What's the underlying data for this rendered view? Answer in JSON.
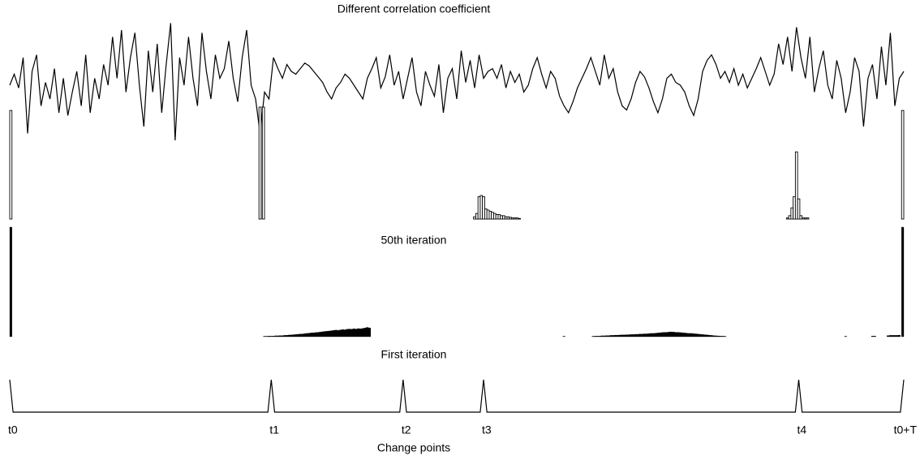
{
  "chart_data": [
    {
      "type": "line",
      "title": "Different correlation coefficient",
      "color": "#000000",
      "xlim": [
        0,
        400
      ],
      "ylim": [
        0,
        1
      ],
      "x": [
        0,
        2,
        4,
        6,
        8,
        10,
        12,
        14,
        16,
        18,
        20,
        22,
        24,
        26,
        28,
        30,
        32,
        34,
        36,
        38,
        40,
        42,
        44,
        46,
        48,
        50,
        52,
        54,
        56,
        58,
        60,
        62,
        64,
        66,
        68,
        70,
        72,
        74,
        76,
        78,
        80,
        82,
        84,
        86,
        88,
        90,
        92,
        94,
        96,
        98,
        100,
        102,
        104,
        106,
        108,
        110,
        112,
        114,
        116,
        118,
        120,
        122,
        124,
        126,
        128,
        130,
        132,
        134,
        136,
        138,
        140,
        142,
        144,
        146,
        148,
        150,
        152,
        154,
        156,
        158,
        160,
        162,
        164,
        166,
        168,
        170,
        172,
        174,
        176,
        178,
        180,
        182,
        184,
        186,
        188,
        190,
        192,
        194,
        196,
        198,
        200,
        202,
        204,
        206,
        208,
        210,
        212,
        214,
        216,
        218,
        220,
        222,
        224,
        226,
        228,
        230,
        232,
        234,
        236,
        238,
        240,
        242,
        244,
        246,
        248,
        250,
        252,
        254,
        256,
        258,
        260,
        262,
        264,
        266,
        268,
        270,
        272,
        274,
        276,
        278,
        280,
        282,
        284,
        286,
        288,
        290,
        292,
        294,
        296,
        298,
        300,
        302,
        304,
        306,
        308,
        310,
        312,
        314,
        316,
        318,
        320,
        322,
        324,
        326,
        328,
        330,
        332,
        334,
        336,
        338,
        340,
        342,
        344,
        346,
        348,
        350,
        352,
        354,
        356,
        358,
        360,
        362,
        364,
        366,
        368,
        370,
        372,
        374,
        376,
        378,
        380,
        382,
        384,
        386,
        388,
        390,
        392,
        394,
        396,
        398,
        400
      ],
      "values": [
        0.5,
        0.58,
        0.48,
        0.7,
        0.15,
        0.6,
        0.72,
        0.35,
        0.52,
        0.4,
        0.62,
        0.3,
        0.55,
        0.28,
        0.45,
        0.6,
        0.35,
        0.72,
        0.3,
        0.55,
        0.4,
        0.65,
        0.5,
        0.85,
        0.55,
        0.9,
        0.45,
        0.7,
        0.88,
        0.5,
        0.2,
        0.75,
        0.45,
        0.8,
        0.3,
        0.65,
        0.95,
        0.1,
        0.7,
        0.5,
        0.85,
        0.55,
        0.35,
        0.88,
        0.6,
        0.4,
        0.72,
        0.55,
        0.62,
        0.82,
        0.55,
        0.38,
        0.7,
        0.9,
        0.5,
        0.4,
        0.15,
        0.45,
        0.4,
        0.7,
        0.62,
        0.55,
        0.65,
        0.6,
        0.58,
        0.62,
        0.66,
        0.64,
        0.6,
        0.56,
        0.52,
        0.45,
        0.4,
        0.48,
        0.52,
        0.58,
        0.55,
        0.5,
        0.45,
        0.4,
        0.55,
        0.62,
        0.7,
        0.48,
        0.56,
        0.72,
        0.5,
        0.6,
        0.4,
        0.55,
        0.7,
        0.45,
        0.35,
        0.6,
        0.5,
        0.42,
        0.65,
        0.3,
        0.55,
        0.62,
        0.4,
        0.75,
        0.52,
        0.68,
        0.48,
        0.72,
        0.55,
        0.6,
        0.62,
        0.55,
        0.65,
        0.48,
        0.6,
        0.52,
        0.58,
        0.45,
        0.5,
        0.62,
        0.7,
        0.58,
        0.48,
        0.6,
        0.55,
        0.42,
        0.35,
        0.3,
        0.38,
        0.48,
        0.55,
        0.62,
        0.7,
        0.6,
        0.5,
        0.72,
        0.55,
        0.62,
        0.45,
        0.35,
        0.32,
        0.4,
        0.52,
        0.6,
        0.56,
        0.48,
        0.38,
        0.3,
        0.4,
        0.55,
        0.58,
        0.52,
        0.5,
        0.45,
        0.35,
        0.28,
        0.4,
        0.6,
        0.68,
        0.72,
        0.65,
        0.55,
        0.6,
        0.52,
        0.62,
        0.5,
        0.58,
        0.48,
        0.55,
        0.62,
        0.7,
        0.6,
        0.5,
        0.58,
        0.8,
        0.65,
        0.85,
        0.6,
        0.92,
        0.7,
        0.55,
        0.85,
        0.45,
        0.62,
        0.75,
        0.5,
        0.4,
        0.68,
        0.55,
        0.3,
        0.45,
        0.7,
        0.6,
        0.2,
        0.55,
        0.65,
        0.4,
        0.78,
        0.5,
        0.88,
        0.35,
        0.55,
        0.6
      ]
    },
    {
      "type": "bar",
      "color": "#000000",
      "filled": false,
      "xlim": [
        0,
        400
      ],
      "ylim": [
        0,
        1
      ],
      "x": [
        0.5,
        112,
        113.5,
        208,
        209,
        210,
        211,
        212,
        213,
        214,
        215,
        216,
        217,
        218,
        219,
        220,
        221,
        222,
        223,
        224,
        225,
        226,
        227,
        228,
        348,
        349,
        350,
        351,
        352,
        353,
        354,
        355,
        356,
        357,
        399.5
      ],
      "values": [
        0.97,
        1,
        1,
        0.02,
        0.05,
        0.2,
        0.21,
        0.2,
        0.09,
        0.08,
        0.07,
        0.06,
        0.05,
        0.04,
        0.04,
        0.03,
        0.03,
        0.02,
        0.02,
        0.015,
        0.01,
        0.01,
        0.01,
        0.005,
        0.01,
        0.03,
        0.1,
        0.2,
        0.6,
        0.18,
        0.03,
        0.01,
        0.01,
        0.01,
        0.97
      ]
    },
    {
      "type": "bar",
      "title": "50th iteration",
      "color": "#000000",
      "filled": true,
      "xlim": [
        0,
        400
      ],
      "ylim": [
        0,
        1
      ],
      "x": [
        0.5,
        114,
        115,
        116,
        117,
        118,
        119,
        120,
        121,
        122,
        123,
        124,
        125,
        126,
        127,
        128,
        129,
        130,
        131,
        132,
        133,
        134,
        135,
        136,
        137,
        138,
        139,
        140,
        141,
        142,
        143,
        144,
        145,
        146,
        147,
        148,
        149,
        150,
        151,
        152,
        153,
        154,
        155,
        156,
        157,
        158,
        159,
        160,
        161,
        248,
        261,
        262,
        263,
        264,
        265,
        266,
        267,
        268,
        269,
        270,
        271,
        272,
        273,
        274,
        275,
        276,
        277,
        278,
        279,
        280,
        281,
        282,
        283,
        284,
        285,
        286,
        287,
        288,
        289,
        290,
        291,
        292,
        293,
        294,
        295,
        296,
        297,
        298,
        299,
        300,
        301,
        302,
        303,
        304,
        305,
        306,
        307,
        308,
        309,
        310,
        311,
        312,
        313,
        314,
        315,
        316,
        317,
        318,
        319,
        320,
        374,
        386,
        387,
        393,
        394,
        395,
        396,
        397,
        398,
        399.5
      ],
      "values": [
        1,
        0.004,
        0.004,
        0.006,
        0.005,
        0.006,
        0.008,
        0.008,
        0.01,
        0.01,
        0.012,
        0.013,
        0.015,
        0.016,
        0.018,
        0.02,
        0.022,
        0.024,
        0.025,
        0.027,
        0.03,
        0.032,
        0.035,
        0.036,
        0.038,
        0.04,
        0.042,
        0.045,
        0.048,
        0.05,
        0.052,
        0.055,
        0.058,
        0.06,
        0.058,
        0.062,
        0.065,
        0.063,
        0.068,
        0.07,
        0.068,
        0.072,
        0.07,
        0.074,
        0.072,
        0.075,
        0.08,
        0.085,
        0.08,
        0.004,
        0.004,
        0.005,
        0.006,
        0.006,
        0.008,
        0.008,
        0.01,
        0.01,
        0.012,
        0.012,
        0.014,
        0.014,
        0.015,
        0.016,
        0.016,
        0.018,
        0.018,
        0.02,
        0.02,
        0.022,
        0.022,
        0.024,
        0.024,
        0.026,
        0.026,
        0.028,
        0.03,
        0.03,
        0.032,
        0.034,
        0.036,
        0.038,
        0.04,
        0.04,
        0.042,
        0.044,
        0.042,
        0.04,
        0.04,
        0.038,
        0.036,
        0.034,
        0.032,
        0.03,
        0.03,
        0.028,
        0.026,
        0.024,
        0.022,
        0.02,
        0.018,
        0.016,
        0.014,
        0.012,
        0.01,
        0.008,
        0.007,
        0.006,
        0.005,
        0.004,
        0.004,
        0.006,
        0.006,
        0.01,
        0.012,
        0.012,
        0.012,
        0.012,
        0.014,
        1
      ]
    },
    {
      "type": "line",
      "title": "First iteration",
      "color": "#000000",
      "xlim": [
        0,
        400
      ],
      "ylim": [
        0,
        1
      ],
      "x": [
        0,
        1.5,
        115.5,
        117,
        118.5,
        174.5,
        176,
        177.5,
        210.5,
        212,
        213.5,
        351.5,
        353,
        354.5,
        398.5,
        400
      ],
      "values": [
        1,
        0,
        0,
        1,
        0,
        0,
        1,
        0,
        0,
        1,
        0,
        0,
        1,
        0,
        0,
        1
      ],
      "xticks": [
        {
          "value": 0,
          "label": "t0"
        },
        {
          "value": 117,
          "label": "t1"
        },
        {
          "value": 176,
          "label": "t2"
        },
        {
          "value": 212,
          "label": "t3"
        },
        {
          "value": 353,
          "label": "t4"
        },
        {
          "value": 400,
          "label": "t0+T"
        }
      ],
      "xlabel": "Change points"
    }
  ]
}
